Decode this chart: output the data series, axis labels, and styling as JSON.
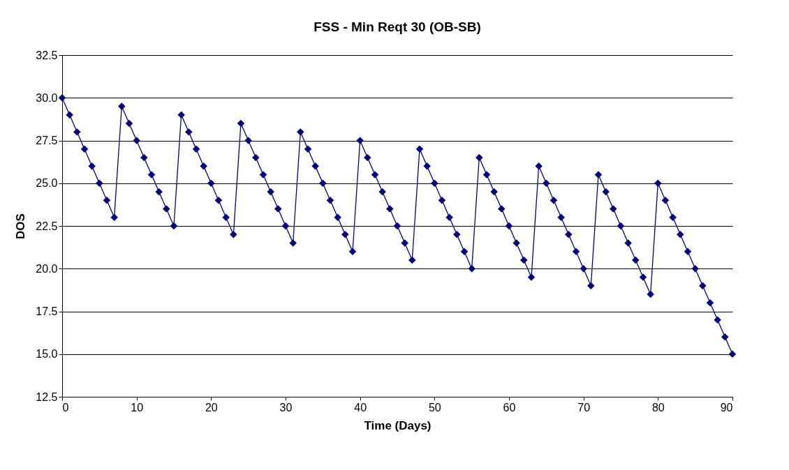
{
  "chart_data": {
    "type": "line",
    "title": "FSS - Min Reqt 30 (OB-SB)",
    "xlabel": "Time (Days)",
    "ylabel": "DOS",
    "x": [
      0,
      1,
      2,
      3,
      4,
      5,
      6,
      7,
      8,
      9,
      10,
      11,
      12,
      13,
      14,
      15,
      16,
      17,
      18,
      19,
      20,
      21,
      22,
      23,
      24,
      25,
      26,
      27,
      28,
      29,
      30,
      31,
      32,
      33,
      34,
      35,
      36,
      37,
      38,
      39,
      40,
      41,
      42,
      43,
      44,
      45,
      46,
      47,
      48,
      49,
      50,
      51,
      52,
      53,
      54,
      55,
      56,
      57,
      58,
      59,
      60,
      61,
      62,
      63,
      64,
      65,
      66,
      67,
      68,
      69,
      70,
      71,
      72,
      73,
      74,
      75,
      76,
      77,
      78,
      79,
      80,
      81,
      82,
      83,
      84,
      85,
      86,
      87,
      88,
      89,
      90
    ],
    "series": [
      {
        "color": "#000080",
        "values": [
          30,
          29,
          28,
          27,
          26,
          25,
          24,
          23,
          29.5,
          28.5,
          27.5,
          26.5,
          25.5,
          24.5,
          23.5,
          22.5,
          29,
          28,
          27,
          26,
          25,
          24,
          23,
          22,
          28.5,
          27.5,
          26.5,
          25.5,
          24.5,
          23.5,
          22.5,
          21.5,
          28,
          27,
          26,
          25,
          24,
          23,
          22,
          21,
          27.5,
          26.5,
          25.5,
          24.5,
          23.5,
          22.5,
          21.5,
          20.5,
          27,
          26,
          25,
          24,
          23,
          22,
          21,
          20,
          26.5,
          25.5,
          24.5,
          23.5,
          22.5,
          21.5,
          20.5,
          19.5,
          26,
          25,
          24,
          23,
          22,
          21,
          20,
          19,
          25.5,
          24.5,
          23.5,
          22.5,
          21.5,
          20.5,
          19.5,
          18.5,
          25,
          24,
          23,
          22,
          21,
          20,
          19,
          18,
          17,
          16,
          15
        ]
      }
    ],
    "xlim": [
      0,
      90
    ],
    "xticks": [
      0,
      10,
      20,
      30,
      40,
      50,
      60,
      70,
      80,
      90
    ],
    "ylim": [
      12.5,
      32.5
    ],
    "yticks": [
      12.5,
      {
        "value": 15,
        "label": "15.0"
      },
      17.5,
      {
        "value": 20,
        "label": "20.0"
      },
      22.5,
      {
        "value": 25,
        "label": "25.0"
      },
      27.5,
      {
        "value": 30,
        "label": "30.0"
      },
      32.5
    ],
    "grid": "y",
    "legend": false,
    "marker": "diamond",
    "line_style": "solid"
  }
}
